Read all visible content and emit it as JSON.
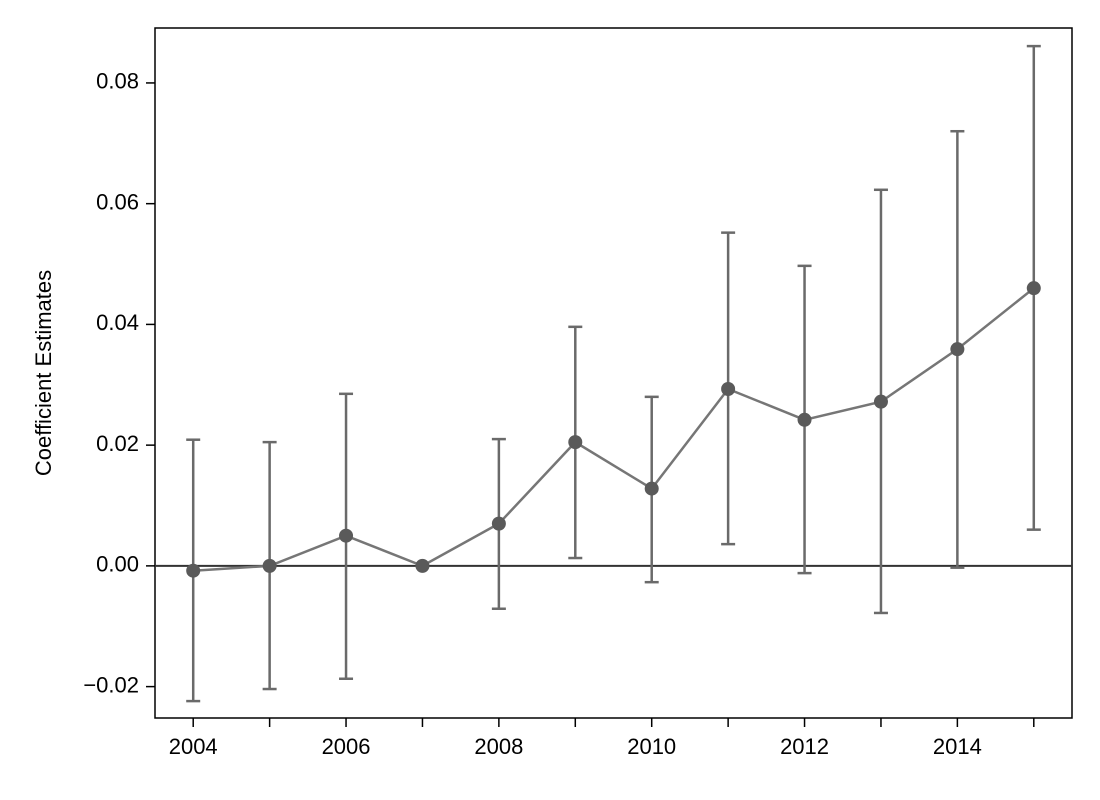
{
  "chart_data": {
    "type": "line",
    "y_label": "Coefficient Estimates",
    "x": [
      2004,
      2005,
      2006,
      2007,
      2008,
      2009,
      2010,
      2011,
      2012,
      2013,
      2014,
      2015
    ],
    "values": [
      -0.0008,
      0.0,
      0.005,
      0.0,
      0.007,
      0.0205,
      0.0128,
      0.0293,
      0.0242,
      0.0272,
      0.0359,
      0.046
    ],
    "lower": [
      -0.0224,
      -0.0204,
      -0.0187,
      null,
      -0.0071,
      0.0013,
      -0.0027,
      0.0036,
      -0.0012,
      -0.0078,
      -0.0003,
      0.006
    ],
    "upper": [
      0.0209,
      0.0205,
      0.0285,
      null,
      0.021,
      0.0396,
      0.028,
      0.0552,
      0.0497,
      0.0623,
      0.072,
      0.0861
    ],
    "color": "#767676",
    "marker_color": "#5a5a5a",
    "bar_color": "#6a6a6a",
    "hline": 0,
    "hline_color": "#333333",
    "xlim": [
      2003.5,
      2015.5
    ],
    "xticks": [
      2004,
      2006,
      2008,
      2010,
      2012,
      2014
    ],
    "xticks_minor": [
      2005,
      2007,
      2009,
      2011,
      2013,
      2015
    ],
    "ylim": [
      -0.0252,
      0.0891
    ],
    "yticks": [
      {
        "value": -0.02,
        "label": "−0.02"
      },
      {
        "value": 0,
        "label": "0.00"
      },
      {
        "value": 0.02,
        "label": "0.02"
      },
      {
        "value": 0.04,
        "label": "0.04"
      },
      {
        "value": 0.06,
        "label": "0.06"
      },
      {
        "value": 0.08,
        "label": "0.08"
      }
    ]
  }
}
